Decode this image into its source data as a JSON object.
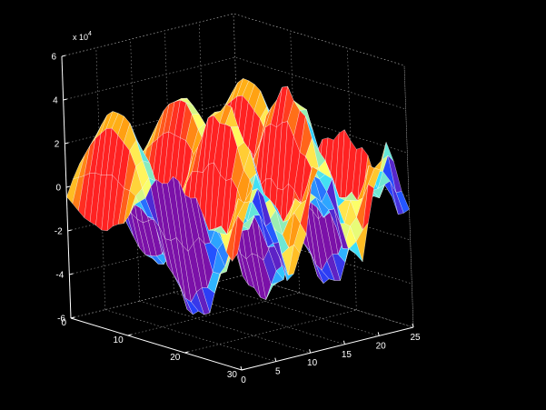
{
  "chart_data": {
    "type": "surface",
    "title": "",
    "xlabel": "",
    "ylabel": "",
    "zlabel": "",
    "x_ticks": [
      "0",
      "5",
      "10",
      "15",
      "20",
      "25"
    ],
    "y_ticks": [
      "0",
      "10",
      "20",
      "30"
    ],
    "z_ticks": [
      "-6",
      "-4",
      "-2",
      "0",
      "2",
      "4",
      "6"
    ],
    "z_scale_label": "x 10",
    "z_scale_exponent": "4",
    "xlim": [
      0,
      25
    ],
    "ylim": [
      0,
      30
    ],
    "zlim": [
      -60000,
      60000
    ],
    "grid": true,
    "colormap": [
      "#7b11a8",
      "#2244ff",
      "#33ddff",
      "#ffff66",
      "#ffaa11",
      "#ff2222"
    ],
    "surface_description_values": {
      "x_samples": 25,
      "y_samples": 30,
      "z_max": 50000,
      "z_min": -50000
    }
  }
}
